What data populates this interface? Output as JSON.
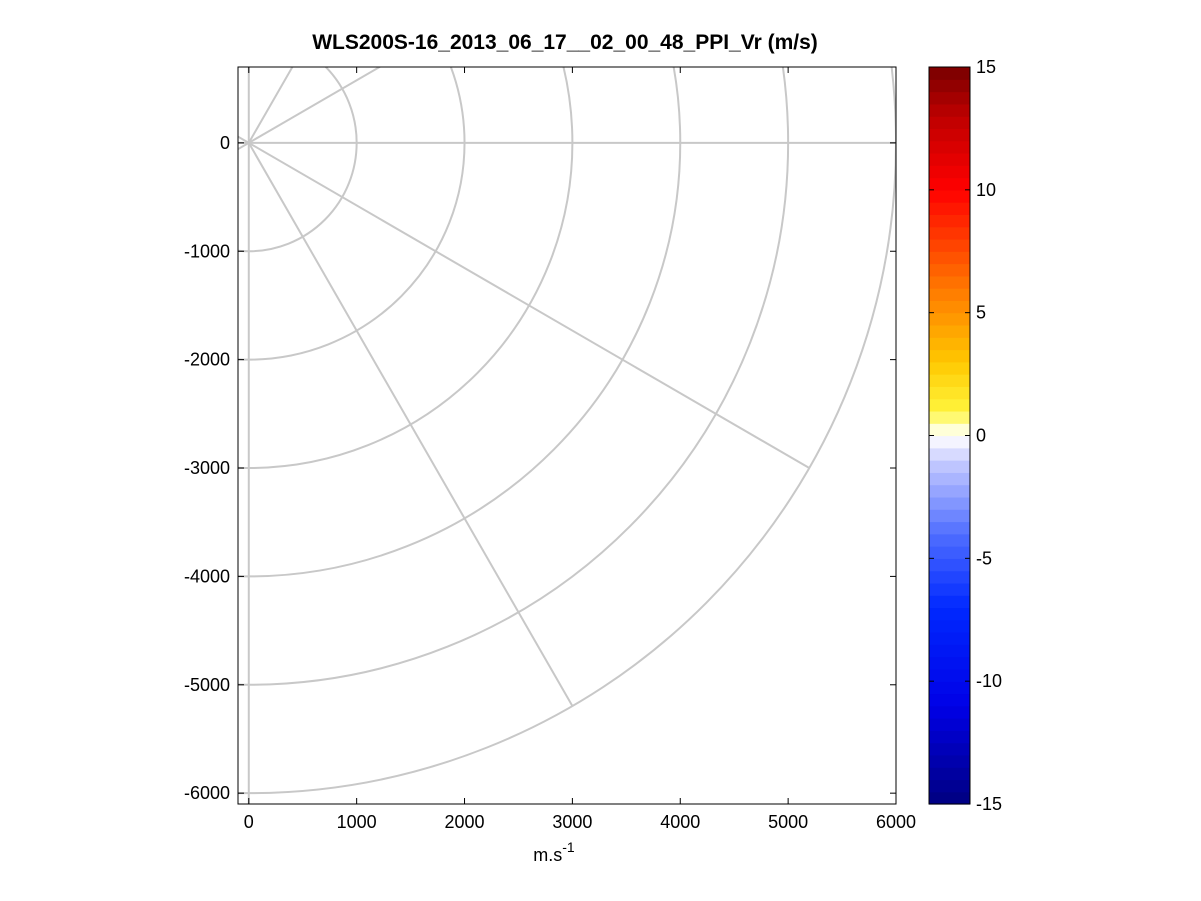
{
  "chart_data": {
    "type": "ppi",
    "title": "WLS200S-16_2013_06_17__02_00_48_PPI_Vr (m/s)",
    "xlabel": {
      "base": "m.s",
      "sup": "-1"
    },
    "ylabel": "",
    "xlim": [
      -100,
      6000
    ],
    "ylim": [
      -6100,
      700
    ],
    "x_ticks": [
      0,
      1000,
      2000,
      3000,
      4000,
      5000,
      6000
    ],
    "y_ticks": [
      0,
      -1000,
      -2000,
      -3000,
      -4000,
      -5000,
      -6000
    ],
    "range_rings": [
      1000,
      2000,
      3000,
      4000,
      5000,
      6000
    ],
    "radial_azimuths_deg_from_east": [
      60,
      30,
      0,
      -30,
      -60
    ],
    "colorbar": {
      "min": -15,
      "max": 15,
      "ticks": [
        15,
        10,
        5,
        0,
        -5,
        -10,
        -15
      ]
    },
    "grid_color": "#c8c8c8"
  }
}
